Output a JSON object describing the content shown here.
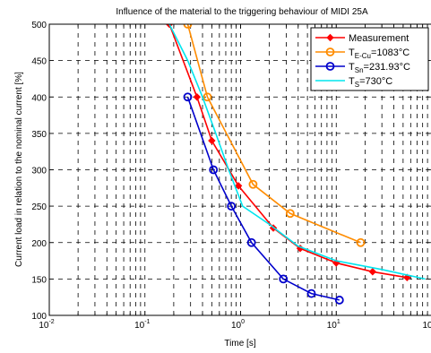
{
  "chart_data": {
    "type": "line",
    "title": "Influence of the material to the triggering behaviour of MIDI 25A",
    "xlabel": "Time [s]",
    "ylabel": "Current load in relation to the nominal current [%]",
    "xscale": "log",
    "xlim": [
      0.01,
      100
    ],
    "ylim": [
      100,
      500
    ],
    "grid": true,
    "legend_position": "top-right",
    "x_ticks": [
      {
        "value": 0.01,
        "base": "10",
        "exp": "-2"
      },
      {
        "value": 0.1,
        "base": "10",
        "exp": "-1"
      },
      {
        "value": 1,
        "base": "10",
        "exp": "0"
      },
      {
        "value": 10,
        "base": "10",
        "exp": "1"
      },
      {
        "value": 100,
        "base": "10",
        "exp": "2"
      }
    ],
    "y_ticks": [
      100,
      150,
      200,
      250,
      300,
      350,
      400,
      450,
      500
    ],
    "series": [
      {
        "name_main": "Measurement",
        "name_sub": "",
        "name_suffix": "",
        "color": "#ff0000",
        "marker": "diamond",
        "x": [
          0.18,
          0.35,
          0.5,
          0.95,
          2.2,
          4.2,
          10,
          24,
          55
        ],
        "y": [
          500,
          400,
          340,
          278,
          220,
          192,
          172,
          160,
          152
        ]
      },
      {
        "name_main": "T",
        "name_sub": "E-Cu",
        "name_suffix": "=1083°C",
        "color": "#ff8c00",
        "marker": "circle",
        "x": [
          0.28,
          0.45,
          1.35,
          3.3,
          18
        ],
        "y": [
          500,
          400,
          280,
          240,
          200
        ]
      },
      {
        "name_main": "T",
        "name_sub": "Sn",
        "name_suffix": "=231.93°C",
        "color": "#0000cc",
        "marker": "circle",
        "x": [
          0.28,
          0.52,
          0.8,
          1.3,
          2.8,
          5.5,
          10.8
        ],
        "y": [
          400,
          300,
          250,
          200,
          150,
          130,
          121
        ]
      },
      {
        "name_main": "T",
        "name_sub": "S",
        "name_suffix": "=730°C",
        "color": "#00e5ee",
        "marker": "none",
        "x": [
          0.18,
          0.28,
          0.4,
          0.55,
          0.75,
          1.05,
          2,
          4,
          10,
          30,
          85
        ],
        "y": [
          500,
          450,
          400,
          350,
          300,
          250,
          225,
          195,
          175,
          163,
          150
        ]
      }
    ]
  }
}
